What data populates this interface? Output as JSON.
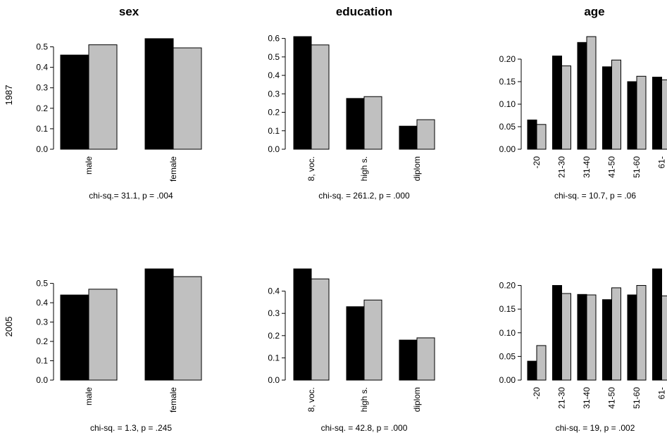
{
  "figure": {
    "column_titles": [
      "sex",
      "education",
      "age"
    ],
    "row_labels": [
      "1987",
      "2005"
    ],
    "series_colors": [
      "#000000",
      "#c0c0c0"
    ]
  },
  "chart_data": [
    {
      "type": "bar",
      "title": "sex",
      "row": "1987",
      "categories": [
        "male",
        "female"
      ],
      "series": [
        {
          "values": [
            0.46,
            0.54
          ]
        },
        {
          "values": [
            0.51,
            0.495
          ]
        }
      ],
      "ylim": [
        0,
        0.55
      ],
      "yticks": [
        "0.0",
        "0.1",
        "0.2",
        "0.3",
        "0.4",
        "0.5"
      ],
      "annotation": "chi-sq.= 31.1, p = .004"
    },
    {
      "type": "bar",
      "title": "education",
      "row": "1987",
      "categories": [
        "8, voc.",
        "high s.",
        "diplom"
      ],
      "series": [
        {
          "values": [
            0.61,
            0.275,
            0.125
          ]
        },
        {
          "values": [
            0.565,
            0.285,
            0.16
          ]
        }
      ],
      "ylim": [
        0,
        0.61
      ],
      "yticks": [
        "0.0",
        "0.1",
        "0.2",
        "0.3",
        "0.4",
        "0.5",
        "0.6"
      ],
      "annotation": "chi-sq. = 261.2, p = .000"
    },
    {
      "type": "bar",
      "title": "age",
      "row": "1987",
      "categories": [
        "-20",
        "21-30",
        "31-40",
        "41-50",
        "51-60",
        "61-"
      ],
      "series": [
        {
          "values": [
            0.065,
            0.207,
            0.237,
            0.183,
            0.15,
            0.16
          ]
        },
        {
          "values": [
            0.055,
            0.185,
            0.25,
            0.198,
            0.162,
            0.154
          ]
        }
      ],
      "ylim": [
        0,
        0.25
      ],
      "yticks": [
        "0.00",
        "0.05",
        "0.10",
        "0.15",
        "0.20"
      ],
      "annotation": "chi-sq. = 10.7, p = .06"
    },
    {
      "type": "bar",
      "title": "sex",
      "row": "2005",
      "categories": [
        "male",
        "female"
      ],
      "series": [
        {
          "values": [
            0.44,
            0.575
          ]
        },
        {
          "values": [
            0.47,
            0.535
          ]
        }
      ],
      "ylim": [
        0,
        0.575
      ],
      "yticks": [
        "0.0",
        "0.1",
        "0.2",
        "0.3",
        "0.4",
        "0.5"
      ],
      "annotation": "chi-sq. = 1.3, p = .245"
    },
    {
      "type": "bar",
      "title": "education",
      "row": "2005",
      "categories": [
        "8, voc.",
        "high s.",
        "diplom"
      ],
      "series": [
        {
          "values": [
            0.5,
            0.33,
            0.18
          ]
        },
        {
          "values": [
            0.455,
            0.36,
            0.19
          ]
        }
      ],
      "ylim": [
        0,
        0.5
      ],
      "yticks": [
        "0.0",
        "0.1",
        "0.2",
        "0.3",
        "0.4"
      ],
      "annotation": "chi-sq. = 42.8, p = .000"
    },
    {
      "type": "bar",
      "title": "age",
      "row": "2005",
      "categories": [
        "-20",
        "21-30",
        "31-40",
        "41-50",
        "51-60",
        "61-"
      ],
      "series": [
        {
          "values": [
            0.04,
            0.2,
            0.181,
            0.17,
            0.18,
            0.235
          ]
        },
        {
          "values": [
            0.073,
            0.183,
            0.18,
            0.195,
            0.2,
            0.178
          ]
        }
      ],
      "ylim": [
        0,
        0.235
      ],
      "yticks": [
        "0.00",
        "0.05",
        "0.10",
        "0.15",
        "0.20"
      ],
      "annotation": "chi-sq. = 19, p = .002"
    }
  ]
}
